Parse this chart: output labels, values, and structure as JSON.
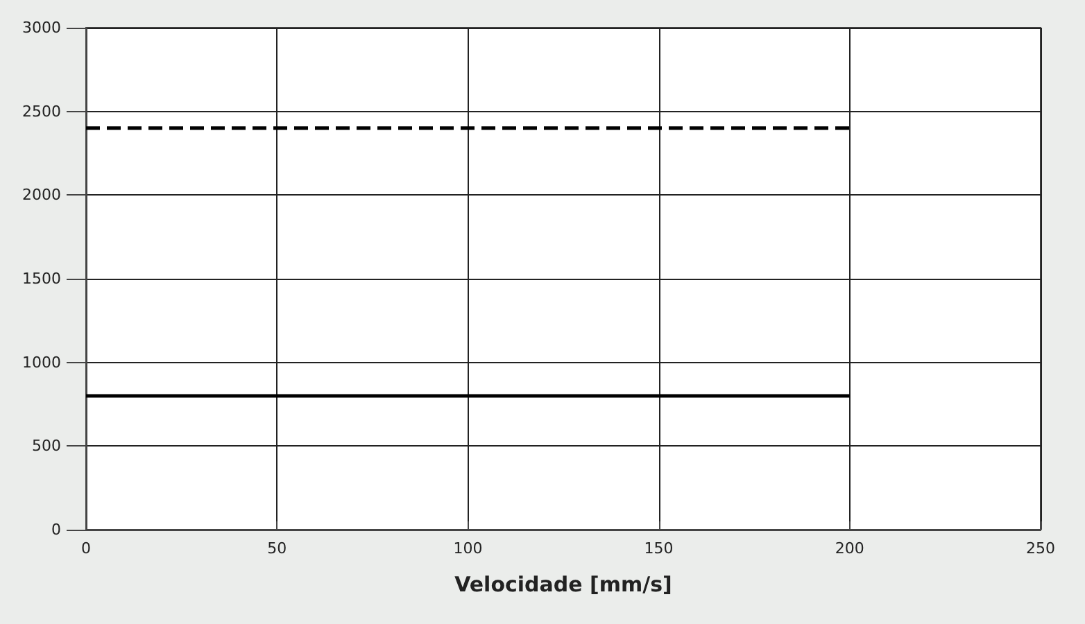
{
  "chart_data": {
    "type": "line",
    "xlabel": "Velocidade [mm/s]",
    "x": [
      0,
      200
    ],
    "series": [
      {
        "color": "#000000",
        "values": [
          2400,
          2400
        ],
        "line_style": "dashed"
      },
      {
        "color": "#000000",
        "values": [
          800,
          800
        ],
        "line_style": "solid"
      }
    ],
    "xlim": [
      0,
      250
    ],
    "xticks": [
      0,
      50,
      100,
      150,
      200,
      250
    ],
    "ylim": [
      0,
      3000
    ],
    "yticks": [
      0,
      500,
      1000,
      1500,
      2000,
      2500,
      3000
    ],
    "grid": true,
    "marker": "none"
  }
}
